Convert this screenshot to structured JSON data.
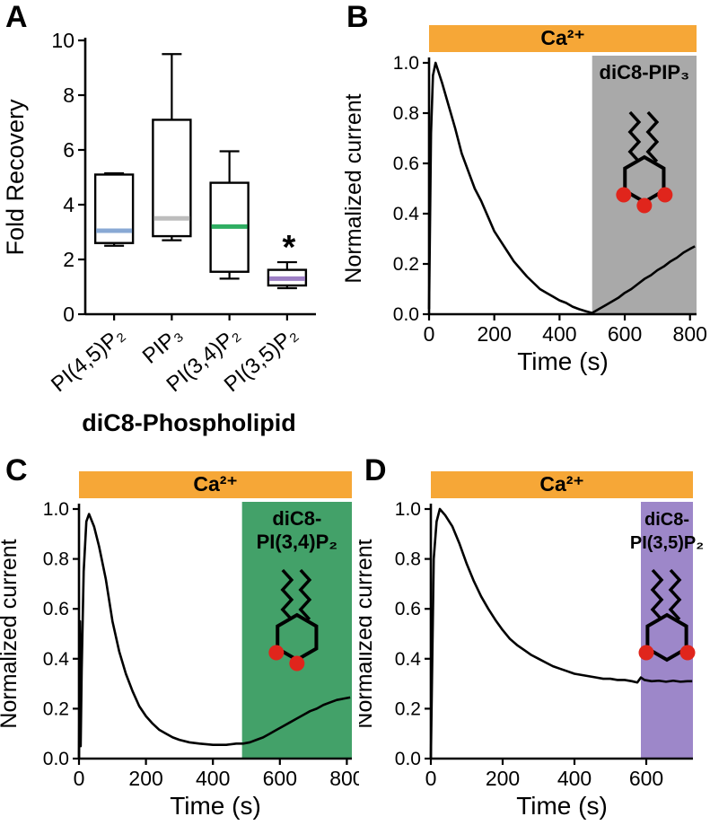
{
  "figure": {
    "background": "#ffffff"
  },
  "panels": {
    "a": {
      "letter": "A"
    },
    "b": {
      "letter": "B"
    },
    "c": {
      "letter": "C"
    },
    "d": {
      "letter": "D"
    }
  },
  "chart_data": [
    {
      "id": "A",
      "panel": "A",
      "type": "box",
      "title": "",
      "xlabel": "diC8-Phospholipid",
      "ylabel": "Fold Recovery",
      "ylim": [
        0,
        10
      ],
      "yticks": [
        0,
        2,
        4,
        6,
        8,
        10
      ],
      "categories": [
        "PI(4,5)P₂",
        "PIP₃",
        "PI(3,4)P₂",
        "PI(3,5)P₂"
      ],
      "boxes": [
        {
          "whisker_low": 2.5,
          "q1": 2.6,
          "median": 3.05,
          "q3": 5.1,
          "whisker_high": 5.15,
          "median_color": "#89a9d4"
        },
        {
          "whisker_low": 2.7,
          "q1": 2.85,
          "median": 3.5,
          "q3": 7.1,
          "whisker_high": 9.5,
          "median_color": "#bdbdbd"
        },
        {
          "whisker_low": 1.3,
          "q1": 1.55,
          "median": 3.2,
          "q3": 4.8,
          "whisker_high": 5.95,
          "median_color": "#2fae62"
        },
        {
          "whisker_low": 0.95,
          "q1": 1.05,
          "median": 1.3,
          "q3": 1.62,
          "whisker_high": 1.9,
          "median_color": "#9d7fc4",
          "annotation": "*"
        }
      ]
    },
    {
      "id": "B",
      "panel": "B",
      "type": "line",
      "xlabel": "Time (s)",
      "ylabel": "Normalized current",
      "xlim": [
        0,
        820
      ],
      "ylim": [
        0,
        1.0
      ],
      "xticks": [
        0,
        200,
        400,
        600,
        800
      ],
      "yticks": [
        0,
        0.2,
        0.4,
        0.6,
        0.8,
        1.0
      ],
      "ytick_labels": [
        "0.0",
        "0.2",
        "0.4",
        "0.6",
        "0.8",
        "1.0"
      ],
      "ca_bar": {
        "label": "Ca²⁺",
        "color": "#f6a737"
      },
      "treatment": {
        "label_lines": [
          "diC8-PIP₃"
        ],
        "color": "#a9a9a9",
        "start": 500,
        "end": 820,
        "icon_dots": [
          "bottom-left",
          "bottom",
          "bottom-right"
        ]
      },
      "series": [
        {
          "name": "normalized current",
          "x": [
            0,
            6,
            12,
            20,
            40,
            60,
            80,
            100,
            120,
            140,
            160,
            180,
            200,
            220,
            240,
            260,
            280,
            300,
            320,
            340,
            360,
            380,
            400,
            420,
            440,
            460,
            480,
            500,
            520,
            540,
            560,
            580,
            600,
            620,
            640,
            660,
            680,
            700,
            720,
            740,
            760,
            780,
            800,
            815
          ],
          "y": [
            0.02,
            0.72,
            0.95,
            1.0,
            0.92,
            0.83,
            0.74,
            0.64,
            0.57,
            0.5,
            0.45,
            0.39,
            0.33,
            0.29,
            0.25,
            0.21,
            0.18,
            0.15,
            0.125,
            0.1,
            0.085,
            0.07,
            0.055,
            0.045,
            0.03,
            0.02,
            0.012,
            0.005,
            0.02,
            0.035,
            0.05,
            0.065,
            0.085,
            0.1,
            0.12,
            0.14,
            0.155,
            0.175,
            0.19,
            0.21,
            0.225,
            0.245,
            0.26,
            0.27
          ]
        }
      ]
    },
    {
      "id": "C",
      "panel": "C",
      "type": "line",
      "xlabel": "Time (s)",
      "ylabel": "Normalized current",
      "xlim": [
        0,
        815
      ],
      "ylim": [
        0,
        1.0
      ],
      "xticks": [
        0,
        200,
        400,
        600,
        800
      ],
      "yticks": [
        0,
        0.2,
        0.4,
        0.6,
        0.8,
        1.0
      ],
      "ytick_labels": [
        "0.0",
        "0.2",
        "0.4",
        "0.6",
        "0.8",
        "1.0"
      ],
      "ca_bar": {
        "label": "Ca²⁺",
        "color": "#f6a737"
      },
      "treatment": {
        "label_lines": [
          "diC8-",
          "PI(3,4)P₂"
        ],
        "color": "#43a169",
        "start": 487,
        "end": 815,
        "icon_dots": [
          "bottom-left",
          "bottom"
        ]
      },
      "series": [
        {
          "name": "normalized current",
          "x": [
            0,
            3,
            5,
            8,
            14,
            22,
            30,
            45,
            60,
            80,
            100,
            120,
            140,
            160,
            180,
            200,
            220,
            240,
            260,
            280,
            300,
            330,
            360,
            400,
            440,
            470,
            490,
            510,
            530,
            550,
            570,
            590,
            610,
            630,
            650,
            670,
            690,
            710,
            730,
            750,
            770,
            790,
            810
          ],
          "y": [
            0.0,
            0.55,
            0.05,
            0.35,
            0.75,
            0.95,
            0.98,
            0.93,
            0.85,
            0.72,
            0.55,
            0.43,
            0.34,
            0.27,
            0.21,
            0.17,
            0.14,
            0.115,
            0.1,
            0.085,
            0.075,
            0.065,
            0.06,
            0.055,
            0.055,
            0.06,
            0.06,
            0.065,
            0.075,
            0.085,
            0.1,
            0.115,
            0.13,
            0.145,
            0.16,
            0.175,
            0.19,
            0.2,
            0.215,
            0.225,
            0.235,
            0.24,
            0.245
          ]
        }
      ]
    },
    {
      "id": "D",
      "panel": "D",
      "type": "line",
      "xlabel": "Time (s)",
      "ylabel": "Normalized current",
      "xlim": [
        0,
        730
      ],
      "ylim": [
        0,
        1.0
      ],
      "xticks": [
        0,
        200,
        400,
        600
      ],
      "yticks": [
        0,
        0.2,
        0.4,
        0.6,
        0.8,
        1.0
      ],
      "ytick_labels": [
        "0.0",
        "0.2",
        "0.4",
        "0.6",
        "0.8",
        "1.0"
      ],
      "ca_bar": {
        "label": "Ca²⁺",
        "color": "#f6a737"
      },
      "treatment": {
        "label_lines": [
          "diC8-",
          "PI(3,5)P₂"
        ],
        "color": "#9d87c9",
        "start": 585,
        "end": 730,
        "icon_dots": [
          "bottom-left",
          "bottom-right"
        ]
      },
      "series": [
        {
          "name": "normalized current",
          "x": [
            0,
            8,
            16,
            25,
            40,
            60,
            80,
            100,
            120,
            140,
            160,
            180,
            200,
            220,
            240,
            260,
            280,
            300,
            320,
            340,
            360,
            380,
            400,
            420,
            440,
            460,
            480,
            500,
            520,
            540,
            560,
            575,
            585,
            595,
            615,
            635,
            655,
            675,
            695,
            715,
            728
          ],
          "y": [
            0.0,
            0.8,
            0.95,
            1.0,
            0.975,
            0.93,
            0.86,
            0.78,
            0.71,
            0.65,
            0.6,
            0.555,
            0.515,
            0.48,
            0.455,
            0.435,
            0.415,
            0.4,
            0.385,
            0.37,
            0.36,
            0.35,
            0.34,
            0.335,
            0.33,
            0.325,
            0.32,
            0.32,
            0.315,
            0.315,
            0.31,
            0.305,
            0.325,
            0.315,
            0.31,
            0.312,
            0.308,
            0.312,
            0.308,
            0.31,
            0.31
          ]
        }
      ]
    }
  ]
}
